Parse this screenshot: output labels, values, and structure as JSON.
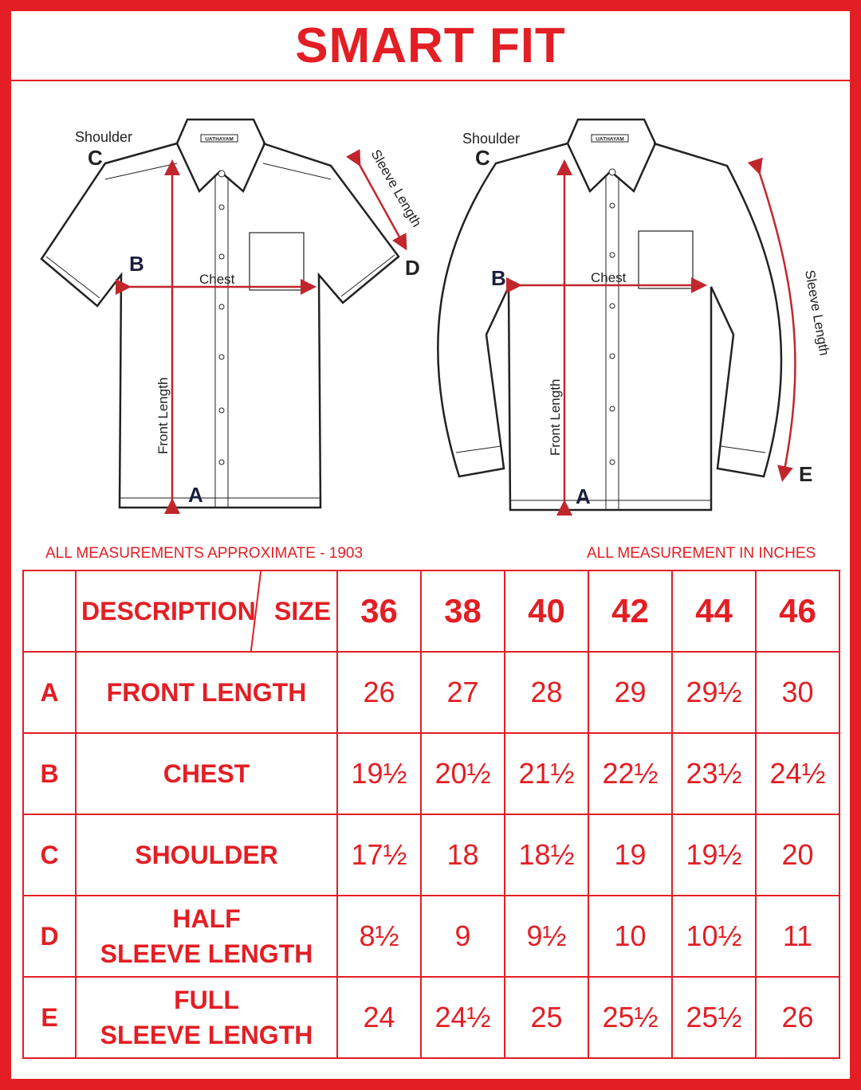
{
  "title": "SMART FIT",
  "brand_label": "UATHAYAM",
  "diagram_labels": {
    "shoulder": "Shoulder",
    "chest": "Chest",
    "front_length": "Front Length",
    "sleeve_length": "Sleeve Length",
    "a": "A",
    "b": "B",
    "c": "C",
    "d": "D",
    "e": "E"
  },
  "notes": {
    "left": "ALL MEASUREMENTS APPROXIMATE - 1903",
    "right": "ALL MEASUREMENT IN INCHES"
  },
  "table": {
    "description_header": "DESCRIPTION",
    "size_header": "SIZE",
    "sizes": [
      "36",
      "38",
      "40",
      "42",
      "44",
      "46"
    ],
    "rows": [
      {
        "letter": "A",
        "line1": "FRONT LENGTH",
        "line2": "",
        "values": [
          "26",
          "27",
          "28",
          "29",
          "29½",
          "30"
        ]
      },
      {
        "letter": "B",
        "line1": "CHEST",
        "line2": "",
        "values": [
          "19½",
          "20½",
          "21½",
          "22½",
          "23½",
          "24½"
        ]
      },
      {
        "letter": "C",
        "line1": "SHOULDER",
        "line2": "",
        "values": [
          "17½",
          "18",
          "18½",
          "19",
          "19½",
          "20"
        ]
      },
      {
        "letter": "D",
        "line1": "HALF",
        "line2": "SLEEVE LENGTH",
        "values": [
          "8½",
          "9",
          "9½",
          "10",
          "10½",
          "11"
        ]
      },
      {
        "letter": "E",
        "line1": "FULL",
        "line2": "SLEEVE LENGTH",
        "values": [
          "24",
          "24½",
          "25",
          "25½",
          "25½",
          "26"
        ]
      }
    ]
  },
  "colors": {
    "accent": "#e31e24",
    "arrow": "#c0272d",
    "ink": "#222222"
  }
}
